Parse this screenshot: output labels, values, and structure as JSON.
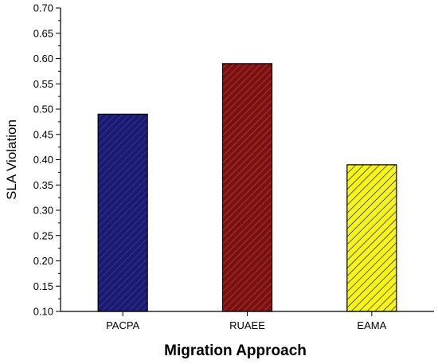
{
  "chart_data": {
    "type": "bar",
    "title": "",
    "xlabel": "Migration Approach",
    "ylabel": "SLA Violation",
    "categories": [
      "PACPA",
      "RUAEE",
      "EAMA"
    ],
    "values": [
      0.49,
      0.59,
      0.39
    ],
    "ylim": [
      0.1,
      0.7
    ],
    "yticks": [
      "0.10",
      "0.15",
      "0.20",
      "0.25",
      "0.30",
      "0.35",
      "0.40",
      "0.45",
      "0.50",
      "0.55",
      "0.60",
      "0.65",
      "0.70"
    ],
    "bar_colors": [
      "#1a1a6e",
      "#7a1010",
      "#f5f51c"
    ],
    "hatch_colors": [
      "#3a3aa8",
      "#b84040",
      "#000000"
    ],
    "grid": false,
    "legend": "none"
  }
}
